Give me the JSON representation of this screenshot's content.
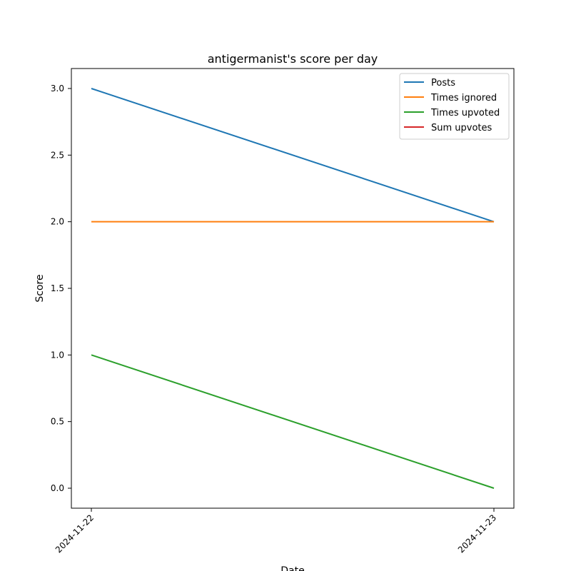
{
  "chart_data": {
    "type": "line",
    "title": "antigermanist's score per day",
    "xlabel": "Date",
    "ylabel": "Score",
    "categories": [
      "2024-11-22",
      "2024-11-23"
    ],
    "ylim": [
      -0.15,
      3.15
    ],
    "yticks": [
      "0.0",
      "0.5",
      "1.0",
      "1.5",
      "2.0",
      "2.5",
      "3.0"
    ],
    "grid": false,
    "legend_position": "top-right",
    "series": [
      {
        "name": "Posts",
        "values": [
          3,
          2
        ],
        "color": "#1f77b4"
      },
      {
        "name": "Times ignored",
        "values": [
          2,
          2
        ],
        "color": "#ff7f0e"
      },
      {
        "name": "Times upvoted",
        "values": [
          1,
          0
        ],
        "color": "#2ca02c"
      },
      {
        "name": "Sum upvotes",
        "values": [
          null,
          null
        ],
        "color": "#d62728"
      }
    ]
  }
}
